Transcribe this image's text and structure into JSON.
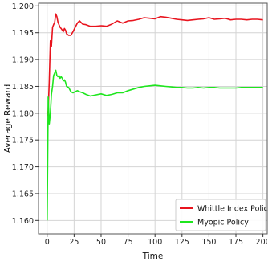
{
  "chart_data": {
    "type": "line",
    "xlabel": "Time",
    "ylabel": "Average Reward",
    "xlim": [
      -8,
      204
    ],
    "ylim": [
      1.1575,
      1.2005
    ],
    "xticks": [
      0,
      25,
      50,
      75,
      100,
      125,
      150,
      175,
      200
    ],
    "xtick_labels": [
      "0",
      "25",
      "50",
      "75",
      "100",
      "125",
      "150",
      "175",
      "200"
    ],
    "yticks": [
      1.16,
      1.165,
      1.17,
      1.175,
      1.18,
      1.185,
      1.19,
      1.195,
      1.2
    ],
    "ytick_labels": [
      "1.160",
      "1.165",
      "1.170",
      "1.175",
      "1.180",
      "1.185",
      "1.190",
      "1.195",
      "1.200"
    ],
    "grid": true,
    "legend_position": "bottom-right",
    "series": [
      {
        "name": "Whittle Index Policy",
        "color": "#e8141e",
        "x": [
          0,
          1,
          2,
          3,
          4,
          5,
          6,
          7,
          8,
          9,
          10,
          11,
          12,
          13,
          14,
          15,
          16,
          17,
          18,
          20,
          22,
          24,
          26,
          28,
          30,
          33,
          36,
          40,
          45,
          50,
          55,
          60,
          65,
          70,
          75,
          80,
          85,
          90,
          95,
          100,
          105,
          110,
          115,
          120,
          125,
          130,
          135,
          140,
          145,
          150,
          155,
          160,
          165,
          170,
          175,
          180,
          185,
          190,
          195,
          200
        ],
        "y": [
          1.1795,
          1.1805,
          1.186,
          1.1935,
          1.1925,
          1.196,
          1.1965,
          1.197,
          1.1985,
          1.198,
          1.197,
          1.1965,
          1.196,
          1.1958,
          1.1955,
          1.1952,
          1.1958,
          1.1955,
          1.1948,
          1.1945,
          1.1945,
          1.1952,
          1.196,
          1.1968,
          1.1972,
          1.1966,
          1.1965,
          1.1962,
          1.1962,
          1.1963,
          1.1962,
          1.1966,
          1.1972,
          1.1968,
          1.1972,
          1.1973,
          1.1975,
          1.1978,
          1.1977,
          1.1976,
          1.198,
          1.1979,
          1.1977,
          1.1975,
          1.1974,
          1.1973,
          1.1974,
          1.1975,
          1.1976,
          1.1978,
          1.1975,
          1.1976,
          1.1977,
          1.1974,
          1.1975,
          1.1975,
          1.1974,
          1.1975,
          1.1975,
          1.1974
        ]
      },
      {
        "name": "Myopic Policy",
        "color": "#1ee61e",
        "x": [
          0,
          1,
          2,
          3,
          4,
          5,
          6,
          7,
          8,
          9,
          10,
          11,
          12,
          13,
          14,
          15,
          16,
          17,
          18,
          20,
          22,
          24,
          26,
          28,
          30,
          33,
          36,
          40,
          45,
          50,
          55,
          60,
          65,
          70,
          75,
          80,
          85,
          90,
          95,
          100,
          105,
          110,
          115,
          120,
          125,
          130,
          135,
          140,
          145,
          150,
          155,
          160,
          165,
          170,
          175,
          180,
          185,
          190,
          195,
          200
        ],
        "y": [
          1.16,
          1.183,
          1.178,
          1.18,
          1.1835,
          1.185,
          1.187,
          1.1875,
          1.188,
          1.187,
          1.1868,
          1.187,
          1.1865,
          1.1868,
          1.1865,
          1.186,
          1.1862,
          1.1858,
          1.185,
          1.1848,
          1.184,
          1.1838,
          1.184,
          1.1842,
          1.184,
          1.1838,
          1.1835,
          1.1832,
          1.1834,
          1.1836,
          1.1833,
          1.1835,
          1.1838,
          1.1838,
          1.1842,
          1.1845,
          1.1848,
          1.185,
          1.1851,
          1.1852,
          1.1851,
          1.185,
          1.1849,
          1.1848,
          1.1848,
          1.1847,
          1.1847,
          1.1848,
          1.1847,
          1.1848,
          1.1848,
          1.1847,
          1.1847,
          1.1847,
          1.1847,
          1.1848,
          1.1848,
          1.1848,
          1.1848,
          1.1848
        ]
      }
    ]
  }
}
